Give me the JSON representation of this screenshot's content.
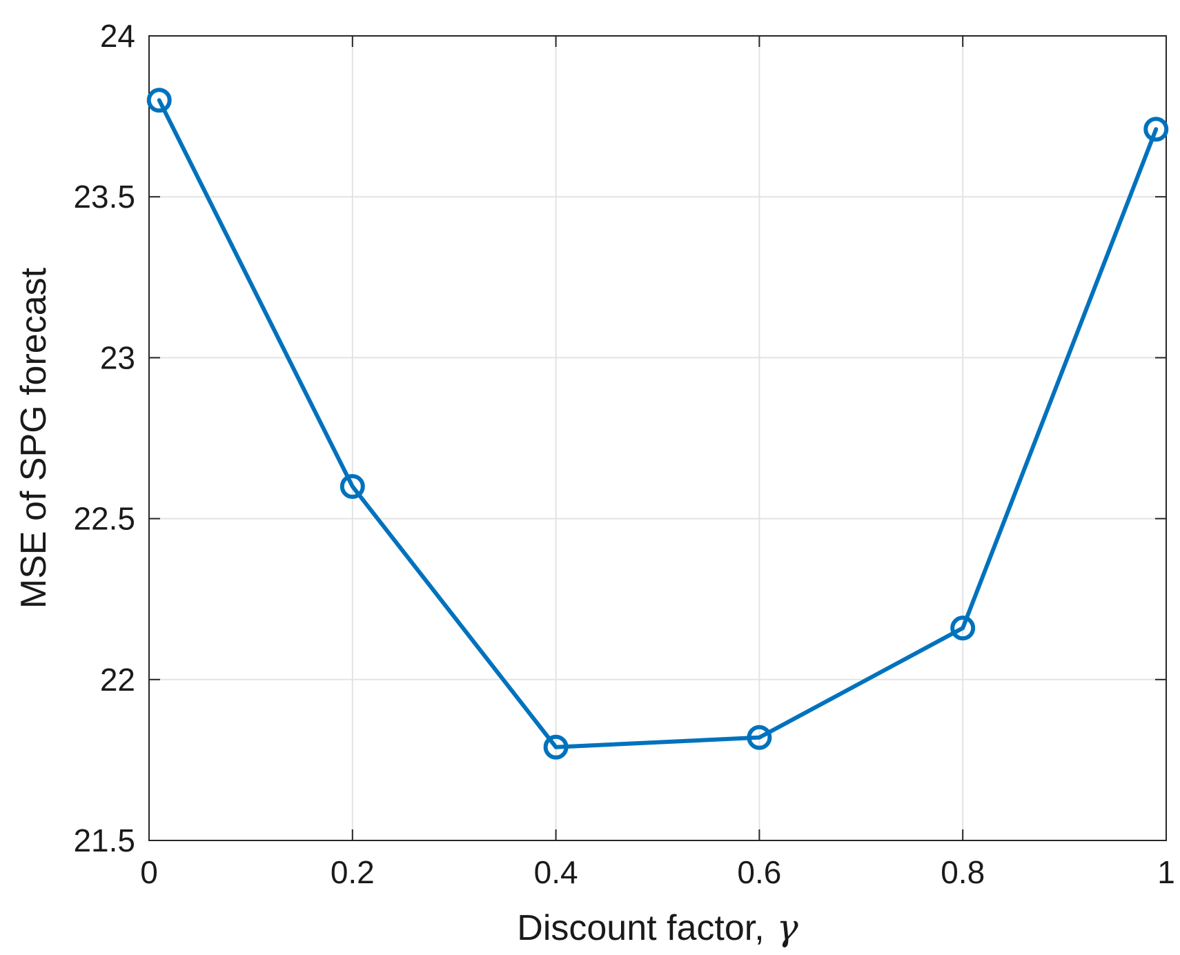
{
  "chart_data": {
    "type": "line",
    "xlabel": "Discount factor,",
    "xlabel_symbol": "γ",
    "ylabel": "MSE of SPG forecast",
    "xlim": [
      0,
      1
    ],
    "ylim": [
      21.5,
      24
    ],
    "xticks": [
      0,
      0.2,
      0.4,
      0.6,
      0.8,
      1
    ],
    "xtick_labels": [
      "0",
      "0.2",
      "0.4",
      "0.6",
      "0.8",
      "1"
    ],
    "yticks": [
      21.5,
      22,
      22.5,
      23,
      23.5,
      24
    ],
    "ytick_labels": [
      "21.5",
      "22",
      "22.5",
      "23",
      "23.5",
      "24"
    ],
    "grid": true,
    "series": [
      {
        "x": [
          0.01,
          0.2,
          0.4,
          0.6,
          0.8,
          0.99
        ],
        "y": [
          23.8,
          22.6,
          21.79,
          21.82,
          22.16,
          23.71
        ],
        "color": "#0072BD",
        "marker": "circle"
      }
    ]
  }
}
